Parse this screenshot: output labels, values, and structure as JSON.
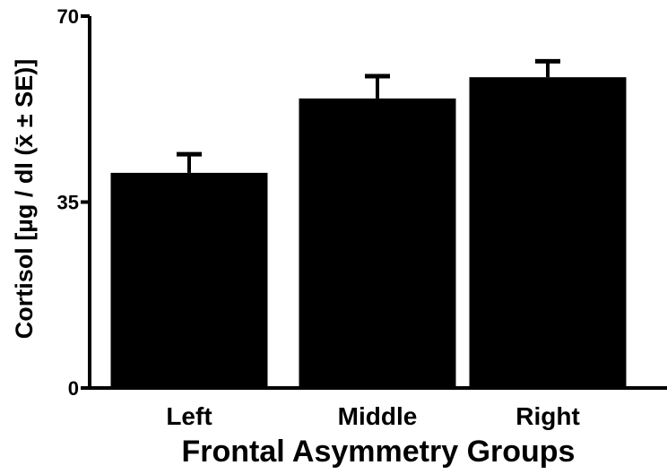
{
  "chart_data": {
    "type": "bar",
    "categories": [
      "Left",
      "Middle",
      "Right"
    ],
    "values": [
      40.5,
      54.5,
      58.5
    ],
    "errors": [
      3.5,
      4.2,
      3.0
    ],
    "error_bars": "upper, ±SE",
    "title": "",
    "xlabel": "Frontal Asymmetry Groups",
    "ylabel": "Cortisol [µg / dl (x̄ ± SE)]",
    "ylim": [
      0,
      70
    ],
    "yticks": [
      "0",
      "35",
      "70"
    ],
    "grid": false,
    "bar_color": "#000000"
  }
}
